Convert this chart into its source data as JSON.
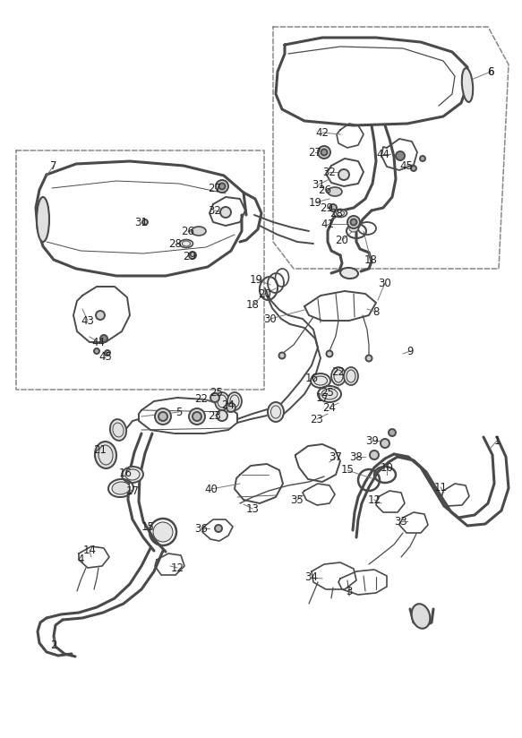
{
  "bg_color": "#ffffff",
  "line_color": "#4a4a4a",
  "dash_color": "#888888",
  "label_color": "#222222",
  "fig_width": 5.83,
  "fig_height": 8.24,
  "dpi": 100
}
